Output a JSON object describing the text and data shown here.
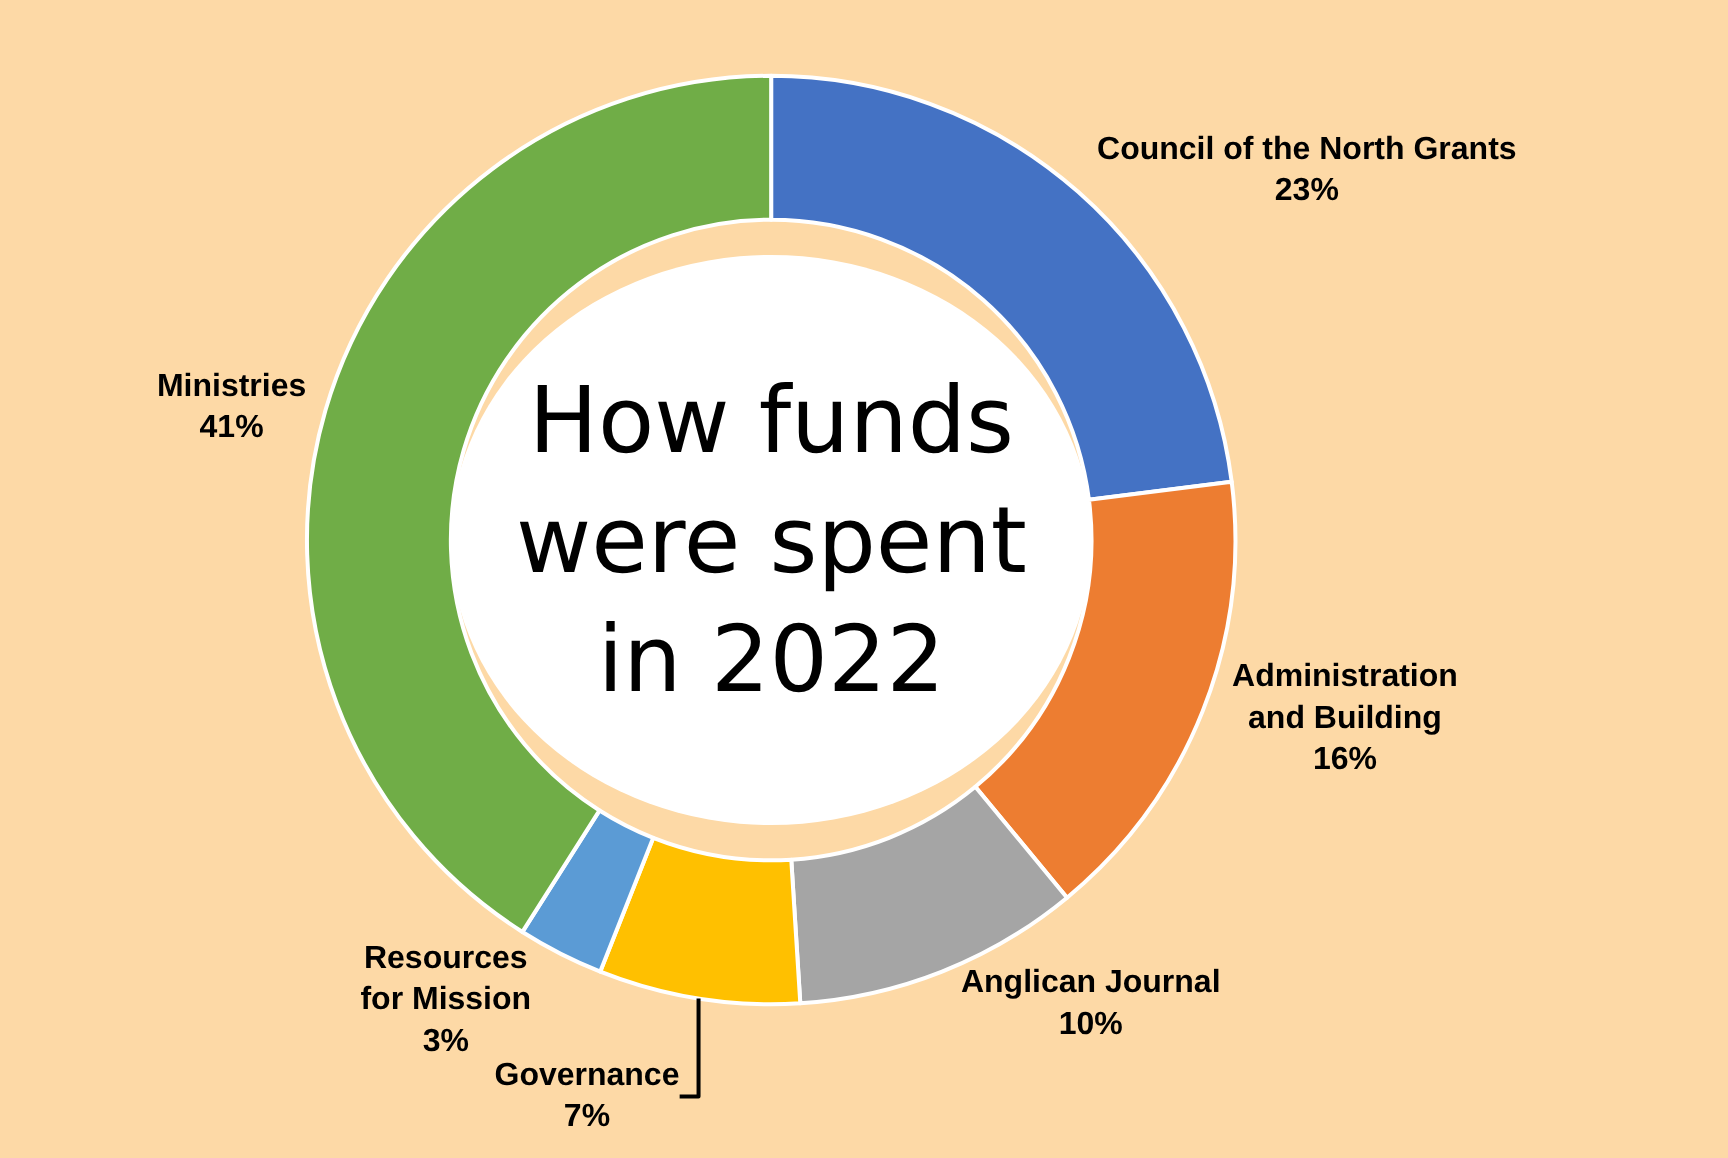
{
  "chart_data": {
    "type": "donut",
    "title": "How funds\nwere spent\nin 2022",
    "categories": [
      "Council of the North Grants",
      "Administration\nand Building",
      "Anglican Journal",
      "Governance",
      "Resources\nfor Mission",
      "Ministries"
    ],
    "values": [
      23,
      16,
      10,
      7,
      3,
      41
    ],
    "value_labels": [
      "23%",
      "16%",
      "10%",
      "7%",
      "3%",
      "41%"
    ],
    "colors": [
      "#4472c4",
      "#ed7d31",
      "#a5a5a5",
      "#ffc000",
      "#5b9bd5",
      "#70ad47"
    ],
    "legend": false
  }
}
